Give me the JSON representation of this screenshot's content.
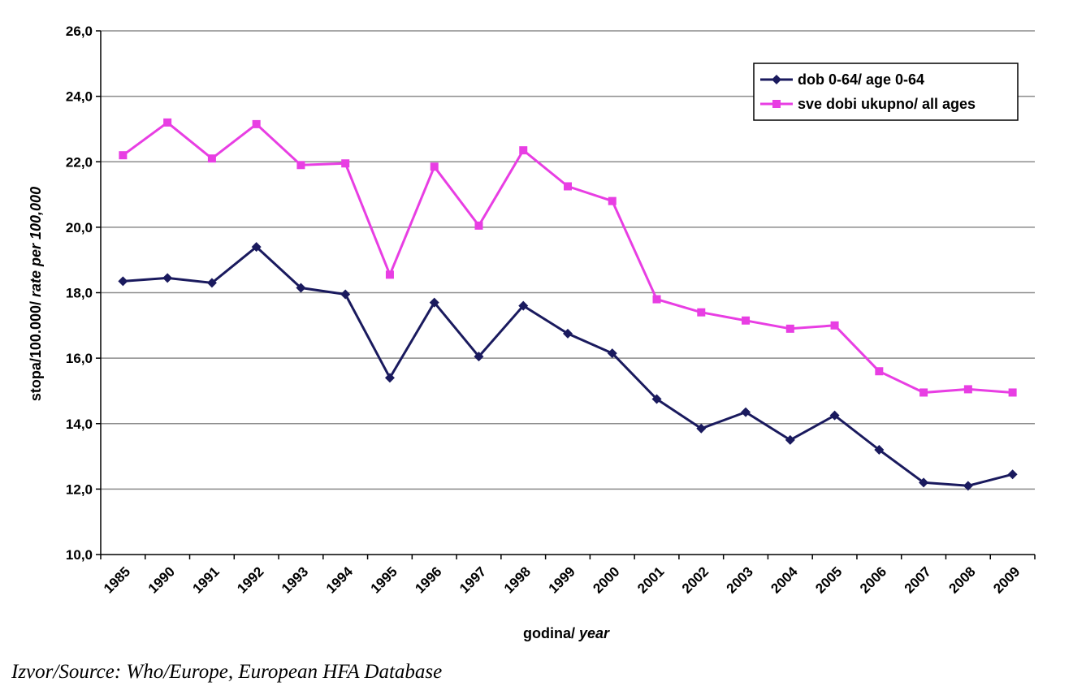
{
  "chart_data": {
    "type": "line",
    "title": "",
    "xlabel": "godina/ year",
    "xlabel_parts": [
      "godina/ ",
      "year"
    ],
    "ylabel": "stopa/100.000/ rate per 100,000",
    "ylabel_parts": [
      "stopa/100.000/ ",
      "rate per 100,000"
    ],
    "ylim": [
      10,
      26
    ],
    "y_ticks": [
      "10,0",
      "12,0",
      "14,0",
      "16,0",
      "18,0",
      "20,0",
      "22,0",
      "24,0",
      "26,0"
    ],
    "grid": "horizontal",
    "legend_position": "top-right",
    "categories": [
      "1985",
      "1990",
      "1991",
      "1992",
      "1993",
      "1994",
      "1995",
      "1996",
      "1997",
      "1998",
      "1999",
      "2000",
      "2001",
      "2002",
      "2003",
      "2004",
      "2005",
      "2006",
      "2007",
      "2008",
      "2009"
    ],
    "series": [
      {
        "name": "dob 0-64/ age 0-64",
        "color": "#1a1a5e",
        "marker": "diamond",
        "values": [
          18.35,
          18.45,
          18.3,
          19.4,
          18.15,
          17.95,
          15.4,
          17.7,
          16.05,
          17.6,
          16.75,
          16.15,
          14.75,
          13.85,
          14.35,
          13.5,
          14.25,
          13.2,
          12.2,
          12.1,
          12.45
        ]
      },
      {
        "name": "sve dobi ukupno/ all ages",
        "color": "#e83ee3",
        "marker": "square",
        "values": [
          22.2,
          23.2,
          22.1,
          23.15,
          21.9,
          21.95,
          18.55,
          21.85,
          20.05,
          22.35,
          21.25,
          20.8,
          17.8,
          17.4,
          17.15,
          16.9,
          17.0,
          15.6,
          14.95,
          15.05,
          14.95
        ]
      }
    ]
  },
  "source": "Izvor/Source: Who/Europe, European HFA Database"
}
